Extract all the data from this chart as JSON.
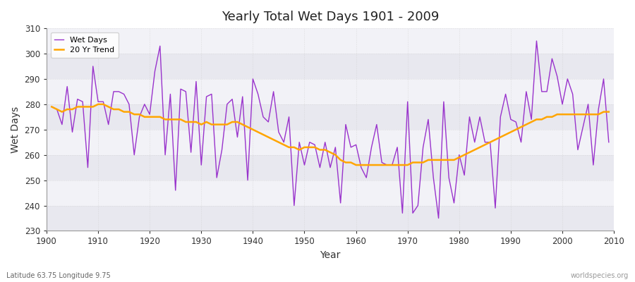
{
  "title": "Yearly Total Wet Days 1901 - 2009",
  "xlabel": "Year",
  "ylabel": "Wet Days",
  "subtitle": "Latitude 63.75 Longitude 9.75",
  "watermark": "worldspecies.org",
  "ylim": [
    230,
    310
  ],
  "yticks": [
    230,
    240,
    250,
    260,
    270,
    280,
    290,
    300,
    310
  ],
  "xlim": [
    1900,
    2010
  ],
  "line_color": "#9933CC",
  "trend_color": "#FFA500",
  "bg_color": "#F0F0F5",
  "plot_bg_color": "#F0F0F5",
  "years": [
    1901,
    1902,
    1903,
    1904,
    1905,
    1906,
    1907,
    1908,
    1909,
    1910,
    1911,
    1912,
    1913,
    1914,
    1915,
    1916,
    1917,
    1918,
    1919,
    1920,
    1921,
    1922,
    1923,
    1924,
    1925,
    1926,
    1927,
    1928,
    1929,
    1930,
    1931,
    1932,
    1933,
    1934,
    1935,
    1936,
    1937,
    1938,
    1939,
    1940,
    1941,
    1942,
    1943,
    1944,
    1945,
    1946,
    1947,
    1948,
    1949,
    1950,
    1951,
    1952,
    1953,
    1954,
    1955,
    1956,
    1957,
    1958,
    1959,
    1960,
    1961,
    1962,
    1963,
    1964,
    1965,
    1966,
    1967,
    1968,
    1969,
    1970,
    1971,
    1972,
    1973,
    1974,
    1975,
    1976,
    1977,
    1978,
    1979,
    1980,
    1981,
    1982,
    1983,
    1984,
    1985,
    1986,
    1987,
    1988,
    1989,
    1990,
    1991,
    1992,
    1993,
    1994,
    1995,
    1996,
    1997,
    1998,
    1999,
    2000,
    2001,
    2002,
    2003,
    2004,
    2005,
    2006,
    2007,
    2008,
    2009
  ],
  "wet_days": [
    279,
    278,
    272,
    287,
    269,
    282,
    281,
    255,
    295,
    281,
    281,
    272,
    285,
    285,
    284,
    280,
    260,
    275,
    280,
    276,
    293,
    303,
    260,
    284,
    246,
    286,
    285,
    261,
    289,
    256,
    283,
    284,
    251,
    262,
    280,
    282,
    267,
    283,
    250,
    290,
    284,
    275,
    273,
    285,
    269,
    265,
    275,
    240,
    265,
    256,
    265,
    264,
    255,
    265,
    255,
    263,
    241,
    272,
    263,
    264,
    255,
    251,
    263,
    272,
    257,
    256,
    256,
    263,
    237,
    281,
    237,
    240,
    263,
    274,
    251,
    235,
    281,
    251,
    241,
    260,
    252,
    275,
    265,
    275,
    265,
    265,
    239,
    275,
    284,
    274,
    273,
    265,
    285,
    274,
    305,
    285,
    285,
    298,
    291,
    280,
    290,
    284,
    262,
    271,
    280,
    256,
    278,
    290,
    265
  ],
  "trend_years": [
    1901,
    1902,
    1903,
    1904,
    1905,
    1906,
    1907,
    1908,
    1909,
    1910,
    1911,
    1912,
    1913,
    1914,
    1915,
    1916,
    1917,
    1918,
    1919,
    1920,
    1921,
    1922,
    1923,
    1924,
    1925,
    1926,
    1927,
    1928,
    1929,
    1930,
    1931,
    1932,
    1933,
    1934,
    1935,
    1936,
    1937,
    1938,
    1939,
    1940,
    1941,
    1942,
    1943,
    1944,
    1945,
    1946,
    1947,
    1948,
    1949,
    1950,
    1951,
    1952,
    1953,
    1954,
    1955,
    1956,
    1957,
    1958,
    1959,
    1960,
    1961,
    1962,
    1963,
    1964,
    1965,
    1966,
    1967,
    1968,
    1969,
    1970,
    1971,
    1972,
    1973,
    1974,
    1975,
    1976,
    1977,
    1978,
    1979,
    1980,
    1981,
    1982,
    1983,
    1984,
    1985,
    1986,
    1987,
    1988,
    1989,
    1990,
    1991,
    1992,
    1993,
    1994,
    1995,
    1996,
    1997,
    1998,
    1999,
    2000,
    2001,
    2002,
    2003,
    2004,
    2005,
    2006,
    2007,
    2008,
    2009
  ],
  "trend_values": [
    279,
    278,
    277,
    278,
    278,
    279,
    279,
    279,
    279,
    280,
    280,
    279,
    278,
    278,
    277,
    277,
    276,
    276,
    275,
    275,
    275,
    275,
    274,
    274,
    274,
    274,
    273,
    273,
    273,
    272,
    273,
    272,
    272,
    272,
    272,
    273,
    273,
    272,
    271,
    270,
    269,
    268,
    267,
    266,
    265,
    264,
    263,
    263,
    262,
    263,
    263,
    263,
    262,
    262,
    261,
    260,
    258,
    257,
    257,
    256,
    256,
    256,
    256,
    256,
    256,
    256,
    256,
    256,
    256,
    256,
    257,
    257,
    257,
    258,
    258,
    258,
    258,
    258,
    258,
    259,
    260,
    261,
    262,
    263,
    264,
    265,
    266,
    267,
    268,
    269,
    270,
    271,
    272,
    273,
    274,
    274,
    275,
    275,
    276,
    276,
    276,
    276,
    276,
    276,
    276,
    276,
    276,
    277,
    277
  ]
}
